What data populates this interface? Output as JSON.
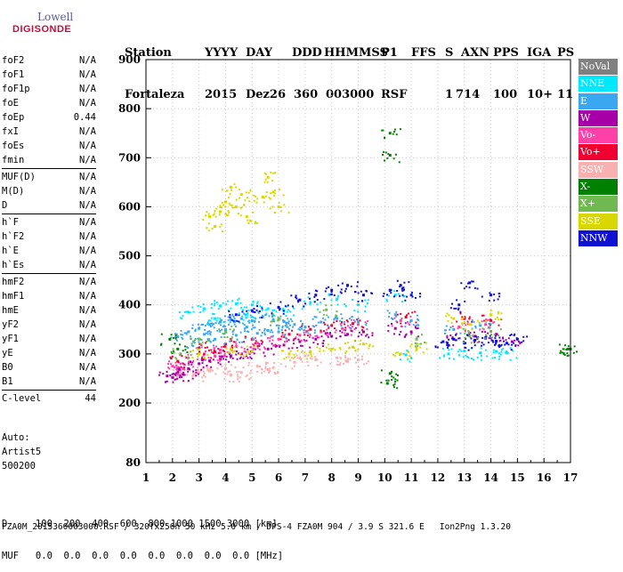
{
  "logo": {
    "line1": "Lowell",
    "line2": "DIGISONDE"
  },
  "header": {
    "labels": [
      "Station",
      "YYYY",
      "DAY",
      "DDD",
      "HHMMSS",
      "P1",
      "FFS",
      "S",
      "AXN",
      "PPS",
      "IGA",
      "PS"
    ],
    "values": [
      "Fortaleza",
      "2015",
      "Dez26",
      "360",
      "003000",
      "RSF",
      "1",
      "714",
      "100",
      "10+",
      "11"
    ]
  },
  "params": [
    [
      {
        "k": "foF2",
        "v": "N/A"
      },
      {
        "k": "foF1",
        "v": "N/A"
      },
      {
        "k": "foF1p",
        "v": "N/A"
      },
      {
        "k": "foE",
        "v": "N/A"
      },
      {
        "k": "foEp",
        "v": "0.44"
      },
      {
        "k": "fxI",
        "v": "N/A"
      },
      {
        "k": "foEs",
        "v": "N/A"
      },
      {
        "k": "fmin",
        "v": "N/A"
      }
    ],
    [
      {
        "k": "MUF(D)",
        "v": "N/A"
      },
      {
        "k": "M(D)",
        "v": "N/A"
      },
      {
        "k": "D",
        "v": "N/A"
      }
    ],
    [
      {
        "k": "h`F",
        "v": "N/A"
      },
      {
        "k": "h`F2",
        "v": "N/A"
      },
      {
        "k": "h`E",
        "v": "N/A"
      },
      {
        "k": "h`Es",
        "v": "N/A"
      }
    ],
    [
      {
        "k": "hmF2",
        "v": "N/A"
      },
      {
        "k": "hmF1",
        "v": "N/A"
      },
      {
        "k": "hmE",
        "v": "N/A"
      },
      {
        "k": "yF2",
        "v": "N/A"
      },
      {
        "k": "yF1",
        "v": "N/A"
      },
      {
        "k": "yE",
        "v": "N/A"
      },
      {
        "k": "B0",
        "v": "N/A"
      },
      {
        "k": "B1",
        "v": "N/A"
      }
    ],
    [
      {
        "k": "C-level",
        "v": "44"
      }
    ]
  ],
  "auto": [
    "Auto:",
    "Artist5",
    "500200"
  ],
  "legend": [
    {
      "label": "NoVal",
      "color": "#808080"
    },
    {
      "label": "NNE",
      "color": "#00e8ff"
    },
    {
      "label": "E",
      "color": "#3aa8f0"
    },
    {
      "label": "W",
      "color": "#a800a8"
    },
    {
      "label": "Vo-",
      "color": "#ff40a8"
    },
    {
      "label": "Vo+",
      "color": "#f00030"
    },
    {
      "label": "SSW",
      "color": "#f8b0b0"
    },
    {
      "label": "X-",
      "color": "#008000"
    },
    {
      "label": "X+",
      "color": "#70b850"
    },
    {
      "label": "SSE",
      "color": "#d8d800"
    },
    {
      "label": "NNW",
      "color": "#1010d0"
    }
  ],
  "dtable": {
    "d_row": "D     100  200  400  600  800 1000 1500 3000 [km]",
    "muf_row": "MUF   0.0  0.0  0.0  0.0  0.0  0.0  0.0  0.0 [MHz]"
  },
  "footer": "FZA0M_2015360003000.RSF / 320fx256h 50 kHz 5.0 km / DPS-4 FZA0M 904 / 3.9 S 321.6 E   Ion2Png 1.3.20",
  "chart_data": {
    "type": "scatter",
    "xlabel": "",
    "ylabel": "",
    "xlim": [
      1,
      17
    ],
    "ylim": [
      80,
      900
    ],
    "x_ticks": [
      1,
      2,
      3,
      4,
      5,
      6,
      7,
      8,
      9,
      10,
      11,
      12,
      13,
      14,
      15,
      16,
      17
    ],
    "y_ticks": [
      80,
      200,
      300,
      400,
      500,
      600,
      700,
      800,
      900
    ],
    "grid": true,
    "legend_position": "right",
    "series": [
      {
        "name": "SSW",
        "color": "#f8b0b0",
        "points": [
          [
            2.3,
            262
          ],
          [
            2.8,
            258
          ],
          [
            3.4,
            265
          ],
          [
            4.0,
            270
          ],
          [
            4.6,
            262
          ],
          [
            5.2,
            275
          ],
          [
            5.8,
            272
          ],
          [
            6.6,
            283
          ],
          [
            7.4,
            288
          ],
          [
            8.2,
            292
          ],
          [
            9.0,
            288
          ],
          [
            7.0,
            296
          ],
          [
            8.6,
            286
          ],
          [
            3.0,
            262
          ],
          [
            4.2,
            257
          ],
          [
            5.6,
            268
          ]
        ]
      },
      {
        "name": "W",
        "color": "#a800a8",
        "points": [
          [
            1.8,
            255
          ],
          [
            2.2,
            262
          ],
          [
            2.6,
            270
          ],
          [
            3.0,
            280
          ],
          [
            3.4,
            286
          ],
          [
            3.8,
            290
          ],
          [
            4.2,
            296
          ],
          [
            4.6,
            300
          ],
          [
            5.0,
            305
          ],
          [
            5.6,
            310
          ],
          [
            6.2,
            318
          ],
          [
            6.8,
            325
          ],
          [
            7.4,
            330
          ],
          [
            8.0,
            336
          ],
          [
            8.6,
            340
          ],
          [
            9.2,
            345
          ],
          [
            10.4,
            352
          ],
          [
            11.0,
            345
          ],
          [
            12.6,
            330
          ],
          [
            13.4,
            336
          ],
          [
            14.2,
            340
          ],
          [
            14.8,
            325
          ],
          [
            2.0,
            252
          ],
          [
            2.4,
            258
          ]
        ]
      },
      {
        "name": "Vo-",
        "color": "#ff40a8",
        "points": [
          [
            2.0,
            275
          ],
          [
            2.6,
            292
          ],
          [
            3.2,
            300
          ],
          [
            3.8,
            308
          ],
          [
            4.4,
            315
          ],
          [
            5.2,
            322
          ],
          [
            6.0,
            330
          ],
          [
            6.8,
            338
          ],
          [
            7.6,
            345
          ],
          [
            8.4,
            352
          ],
          [
            9.0,
            360
          ],
          [
            10.6,
            368
          ],
          [
            12.8,
            355
          ],
          [
            13.8,
            360
          ],
          [
            2.4,
            270
          ],
          [
            3.6,
            296
          ]
        ]
      },
      {
        "name": "Vo+",
        "color": "#f00030",
        "points": [
          [
            2.2,
            285
          ],
          [
            3.0,
            312
          ],
          [
            4.0,
            320
          ],
          [
            5.0,
            330
          ],
          [
            6.4,
            340
          ],
          [
            7.2,
            350
          ],
          [
            8.0,
            358
          ],
          [
            8.8,
            362
          ],
          [
            10.8,
            375
          ],
          [
            13.0,
            372
          ],
          [
            14.0,
            368
          ],
          [
            3.6,
            304
          ]
        ]
      },
      {
        "name": "E",
        "color": "#3aa8f0",
        "points": [
          [
            2.2,
            335
          ],
          [
            2.6,
            345
          ],
          [
            3.0,
            352
          ],
          [
            3.4,
            360
          ],
          [
            3.8,
            365
          ],
          [
            4.2,
            370
          ],
          [
            4.6,
            372
          ],
          [
            5.0,
            368
          ],
          [
            5.4,
            375
          ],
          [
            5.8,
            370
          ],
          [
            6.2,
            366
          ],
          [
            6.6,
            360
          ],
          [
            3.2,
            340
          ],
          [
            4.0,
            350
          ],
          [
            4.8,
            355
          ],
          [
            5.6,
            348
          ],
          [
            2.8,
            325
          ],
          [
            3.6,
            330
          ],
          [
            4.4,
            338
          ],
          [
            5.2,
            342
          ],
          [
            6.0,
            345
          ],
          [
            7.0,
            355
          ],
          [
            7.6,
            365
          ],
          [
            8.2,
            372
          ],
          [
            9.0,
            366
          ],
          [
            10.4,
            380
          ],
          [
            11.0,
            368
          ],
          [
            12.6,
            350
          ],
          [
            13.6,
            358
          ]
        ]
      },
      {
        "name": "NNE",
        "color": "#00e8ff",
        "points": [
          [
            2.6,
            385
          ],
          [
            3.2,
            392
          ],
          [
            3.8,
            398
          ],
          [
            4.4,
            402
          ],
          [
            5.0,
            400
          ],
          [
            5.6,
            392
          ],
          [
            6.2,
            388
          ],
          [
            7.2,
            405
          ],
          [
            8.2,
            412
          ],
          [
            9.0,
            400
          ],
          [
            10.4,
            420
          ],
          [
            10.8,
            298
          ],
          [
            12.4,
            300
          ],
          [
            13.0,
            306
          ],
          [
            13.6,
            302
          ],
          [
            14.2,
            305
          ],
          [
            14.6,
            302
          ],
          [
            3.6,
            372
          ],
          [
            4.8,
            380
          ]
        ]
      },
      {
        "name": "NNW",
        "color": "#1010d0",
        "points": [
          [
            4.4,
            380
          ],
          [
            5.0,
            388
          ],
          [
            6.0,
            395
          ],
          [
            6.8,
            410
          ],
          [
            7.4,
            420
          ],
          [
            8.0,
            430
          ],
          [
            8.6,
            440
          ],
          [
            9.2,
            420
          ],
          [
            10.2,
            430
          ],
          [
            10.6,
            440
          ],
          [
            11.0,
            420
          ],
          [
            12.2,
            325
          ],
          [
            12.6,
            330
          ],
          [
            13.0,
            322
          ],
          [
            13.4,
            328
          ],
          [
            13.8,
            332
          ],
          [
            14.2,
            326
          ],
          [
            14.6,
            322
          ],
          [
            15.0,
            330
          ],
          [
            13.2,
            445
          ],
          [
            14.0,
            420
          ],
          [
            12.8,
            400
          ]
        ]
      },
      {
        "name": "SSE",
        "color": "#d8d800",
        "points": [
          [
            3.0,
            300
          ],
          [
            3.4,
            580
          ],
          [
            3.6,
            560
          ],
          [
            3.8,
            590
          ],
          [
            4.0,
            610
          ],
          [
            4.2,
            640
          ],
          [
            4.4,
            600
          ],
          [
            4.6,
            625
          ],
          [
            4.8,
            580
          ],
          [
            5.4,
            620
          ],
          [
            5.6,
            660
          ],
          [
            5.8,
            630
          ],
          [
            6.0,
            600
          ],
          [
            6.4,
            300
          ],
          [
            7.2,
            304
          ],
          [
            8.0,
            310
          ],
          [
            8.8,
            314
          ],
          [
            9.2,
            320
          ],
          [
            10.6,
            300
          ],
          [
            11.2,
            312
          ],
          [
            12.6,
            372
          ],
          [
            13.2,
            360
          ],
          [
            14.0,
            380
          ],
          [
            4.2,
            310
          ],
          [
            5.0,
            306
          ]
        ]
      },
      {
        "name": "X-",
        "color": "#008000",
        "points": [
          [
            1.9,
            330
          ],
          [
            2.2,
            310
          ],
          [
            10.2,
            260
          ],
          [
            10.1,
            240
          ],
          [
            10.2,
            750
          ],
          [
            10.2,
            705
          ],
          [
            16.9,
            310
          ],
          [
            17.0,
            310
          ]
        ]
      },
      {
        "name": "X+",
        "color": "#70b850",
        "points": [
          [
            2.3,
            300
          ],
          [
            3.0,
            330
          ],
          [
            4.0,
            345
          ],
          [
            6.0,
            370
          ],
          [
            7.8,
            390
          ],
          [
            11.2,
            330
          ],
          [
            13.2,
            336
          ],
          [
            14.0,
            346
          ]
        ]
      }
    ]
  }
}
